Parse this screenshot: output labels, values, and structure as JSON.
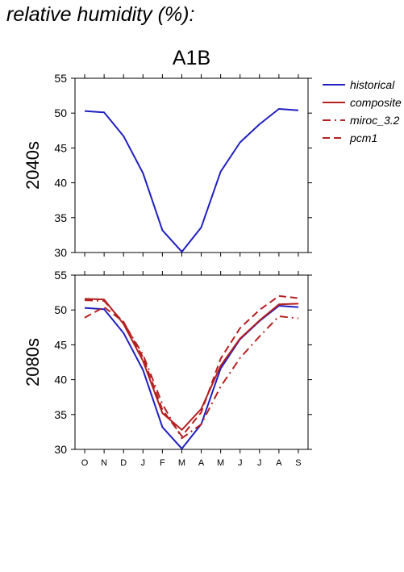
{
  "page_title": "relative humidity (%):",
  "colors": {
    "historical": "#2020c0",
    "composite": "#b52020",
    "miroc_3.2": "#b52020",
    "pcm1": "#b52020"
  },
  "chart_data": {
    "type": "line",
    "title": "A1B",
    "months": [
      "O",
      "N",
      "D",
      "J",
      "F",
      "M",
      "A",
      "M",
      "J",
      "J",
      "A",
      "S"
    ],
    "legend": [
      {
        "name": "historical",
        "style": "solid",
        "color": "#2020c0"
      },
      {
        "name": "composite",
        "style": "solid",
        "color": "#b52020"
      },
      {
        "name": "miroc_3.2",
        "style": "dashdot",
        "color": "#b52020"
      },
      {
        "name": "pcm1",
        "style": "dashed",
        "color": "#b52020"
      }
    ],
    "legend_position": "right",
    "panels": [
      {
        "ylabel": "2040s",
        "ylim": [
          30,
          55
        ],
        "yticks": [
          30,
          35,
          40,
          45,
          50,
          55
        ],
        "series": [
          {
            "name": "historical",
            "values": [
              50.3,
              50.1,
              46.7,
              41.4,
              33.2,
              30.1,
              33.6,
              41.6,
              45.8,
              48.4,
              50.6,
              50.4
            ]
          }
        ]
      },
      {
        "ylabel": "2080s",
        "ylim": [
          30,
          55
        ],
        "yticks": [
          30,
          35,
          40,
          45,
          50,
          55
        ],
        "series": [
          {
            "name": "historical",
            "values": [
              50.3,
              50.1,
              46.7,
              41.4,
              33.2,
              30.1,
              33.6,
              41.6,
              45.8,
              48.4,
              50.6,
              50.4
            ]
          },
          {
            "name": "composite",
            "values": [
              51.6,
              51.5,
              48.0,
              42.7,
              35.2,
              32.8,
              35.8,
              42.0,
              45.9,
              48.5,
              50.8,
              50.9
            ]
          },
          {
            "name": "miroc_3.2",
            "values": [
              51.4,
              51.3,
              48.2,
              43.6,
              36.5,
              31.6,
              33.6,
              39.0,
              43.1,
              46.2,
              49.1,
              48.8
            ]
          },
          {
            "name": "pcm1",
            "values": [
              48.9,
              50.4,
              48.3,
              43.2,
              35.7,
              31.9,
              35.3,
              43.0,
              47.4,
              50.0,
              52.0,
              51.7
            ]
          }
        ]
      }
    ]
  }
}
